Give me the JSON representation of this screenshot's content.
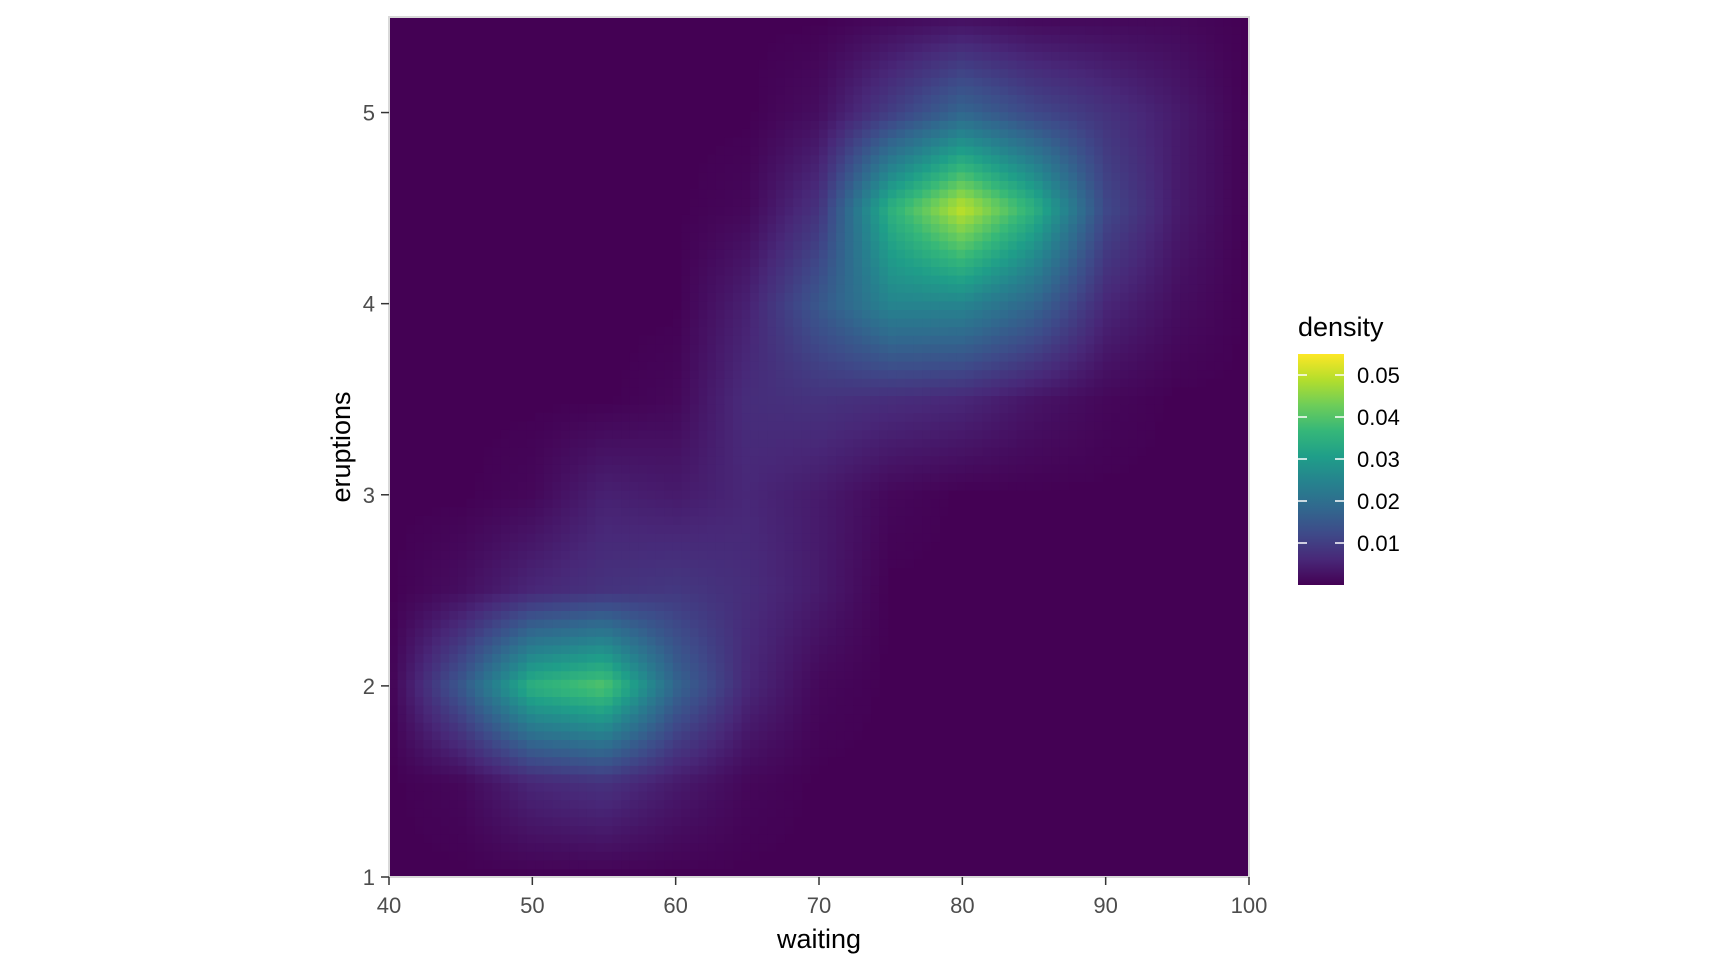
{
  "chart_data": {
    "type": "heatmap",
    "title": "",
    "xlabel": "waiting",
    "ylabel": "eruptions",
    "xlim": [
      40,
      100
    ],
    "ylim": [
      1,
      5.5
    ],
    "x_ticks": [
      40,
      50,
      60,
      70,
      80,
      90,
      100
    ],
    "x_tick_labels": [
      "40",
      "50",
      "60",
      "70",
      "80",
      "90",
      "100"
    ],
    "y_ticks": [
      1,
      2,
      3,
      4,
      5
    ],
    "y_tick_labels": [
      "1",
      "2",
      "3",
      "4",
      "5"
    ],
    "grid": false,
    "panel_border": true,
    "colormap": "viridis",
    "colors": {
      "low": "#440154",
      "high": "#FDE725",
      "panel_border": "#d9d9d9",
      "tick": "#333333"
    },
    "legend": {
      "title": "density",
      "placement": "right",
      "range": [
        0,
        0.055
      ],
      "breaks": [
        0.01,
        0.02,
        0.03,
        0.04,
        0.05
      ],
      "labels": [
        "0.01",
        "0.02",
        "0.03",
        "0.04",
        "0.05"
      ]
    },
    "density_grid": {
      "x": [
        40,
        45,
        50,
        55,
        60,
        65,
        70,
        75,
        80,
        85,
        90,
        95,
        100
      ],
      "y": [
        1.0,
        1.5,
        2.0,
        2.5,
        3.0,
        3.5,
        4.0,
        4.5,
        5.0,
        5.5
      ],
      "z": [
        [
          0,
          0,
          0,
          0,
          0,
          0,
          0,
          0,
          0,
          0,
          0,
          0,
          0
        ],
        [
          0,
          0.001,
          0.006,
          0.008,
          0.004,
          0.001,
          0,
          0,
          0,
          0,
          0,
          0,
          0
        ],
        [
          0,
          0.015,
          0.035,
          0.04,
          0.018,
          0.006,
          0.001,
          0,
          0,
          0,
          0,
          0,
          0
        ],
        [
          0,
          0.002,
          0.006,
          0.008,
          0.009,
          0.007,
          0.004,
          0,
          0,
          0,
          0,
          0,
          0
        ],
        [
          0,
          0,
          0.001,
          0.005,
          0.004,
          0.006,
          0.004,
          0.001,
          0,
          0,
          0,
          0,
          0
        ],
        [
          0,
          0,
          0,
          0,
          0.001,
          0.007,
          0.008,
          0.007,
          0.006,
          0.003,
          0.001,
          0,
          0
        ],
        [
          0,
          0,
          0,
          0,
          0,
          0.005,
          0.015,
          0.025,
          0.025,
          0.018,
          0.006,
          0.002,
          0
        ],
        [
          0,
          0,
          0,
          0,
          0,
          0.001,
          0.008,
          0.035,
          0.05,
          0.035,
          0.012,
          0.004,
          0
        ],
        [
          0,
          0,
          0,
          0,
          0,
          0,
          0.002,
          0.01,
          0.018,
          0.012,
          0.008,
          0.004,
          0
        ],
        [
          0,
          0,
          0,
          0,
          0,
          0,
          0,
          0.001,
          0.002,
          0.001,
          0.001,
          0.001,
          0
        ]
      ]
    }
  }
}
